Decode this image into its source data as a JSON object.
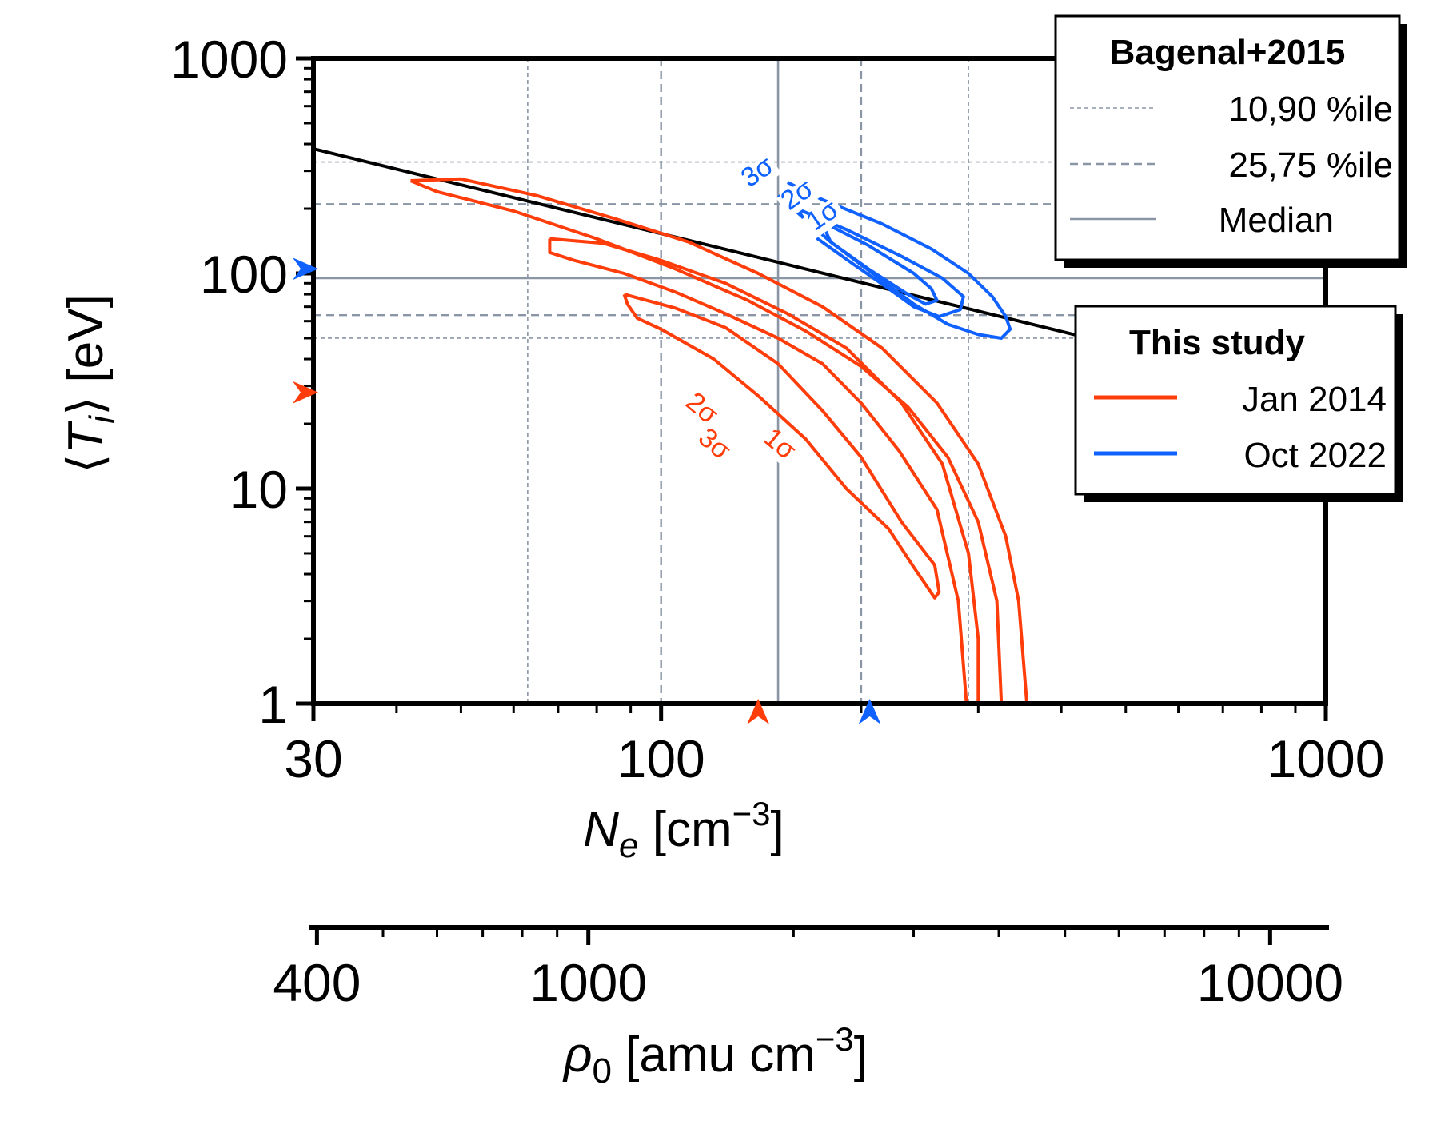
{
  "colors": {
    "jan": "#ff3d0a",
    "oct": "#0f62ff",
    "ref": "#8a96a6",
    "axis": "#000000"
  },
  "chart_data": {
    "type": "contour",
    "x_scale": "log",
    "y_scale": "log",
    "xlim": [
      30,
      1000
    ],
    "ylim": [
      1,
      1000
    ],
    "x_ticks": [
      30,
      100,
      1000
    ],
    "x_tick_labels": [
      "30",
      "100",
      "1000"
    ],
    "y_ticks": [
      1,
      10,
      100,
      1000
    ],
    "y_tick_labels": [
      "1",
      "10",
      "100",
      "1000"
    ],
    "xlabel": {
      "symbol": "N",
      "sub": "e",
      "unit_prefix": " [cm",
      "exp": "−3",
      "unit_suffix": "]"
    },
    "ylabel": {
      "open": "⟨",
      "symbol": "T",
      "sub": "i",
      "close": "⟩",
      "unit": " [eV]"
    },
    "secondary_x": {
      "xlim": [
        390,
        12200
      ],
      "ticks": [
        400,
        1000,
        10000
      ],
      "tick_labels": [
        "400",
        "1000",
        "10000"
      ],
      "label": {
        "symbol": "ρ",
        "sub": "0",
        "unit_prefix": " [amu cm",
        "exp": "−3",
        "unit_suffix": "]"
      }
    },
    "reference": {
      "median": {
        "x": 150,
        "y": 95
      },
      "p25_75": {
        "x": [
          100,
          200
        ],
        "y": [
          64,
          210
        ]
      },
      "p10_90": {
        "x": [
          63,
          290
        ],
        "y": [
          50,
          330
        ]
      },
      "trend_line": {
        "x": [
          30,
          440
        ],
        "y": [
          380,
          50
        ]
      }
    },
    "legend_reference": {
      "title": "Bagenal+2015",
      "entries": [
        "10,90 %ile",
        "25,75 %ile",
        "Median"
      ],
      "placement": "top-right"
    },
    "legend_study": {
      "title": "This study",
      "entries": [
        "Jan 2014",
        "Oct 2022"
      ],
      "placement": "right"
    },
    "series": [
      {
        "name": "Jan 2014",
        "markers": {
          "x": 140,
          "y": 28
        },
        "contours": [
          {
            "label": "1σ",
            "points": [
              [
                88,
                80
              ],
              [
                105,
                69
              ],
              [
                125,
                56
              ],
              [
                150,
                38
              ],
              [
                175,
                23
              ],
              [
                200,
                14
              ],
              [
                230,
                7
              ],
              [
                258,
                4.4
              ],
              [
                262,
                3.3
              ],
              [
                258,
                3.1
              ],
              [
                240,
                4.3
              ],
              [
                220,
                6.5
              ],
              [
                190,
                10
              ],
              [
                165,
                17
              ],
              [
                140,
                27
              ],
              [
                120,
                40
              ],
              [
                100,
                55
              ],
              [
                92,
                62
              ],
              [
                89,
                72
              ],
              [
                88,
                80
              ]
            ]
          },
          {
            "label": "2σ",
            "points": [
              [
                68,
                145
              ],
              [
                82,
                138
              ],
              [
                100,
                115
              ],
              [
                125,
                90
              ],
              [
                155,
                65
              ],
              [
                190,
                45
              ],
              [
                230,
                25
              ],
              [
                265,
                13
              ],
              [
                290,
                5
              ],
              [
                300,
                2
              ],
              [
                300,
                1
              ],
              [
                288,
                1
              ],
              [
                280,
                3
              ],
              [
                260,
                8
              ],
              [
                228,
                15
              ],
              [
                200,
                25
              ],
              [
                175,
                38
              ],
              [
                150,
                50
              ],
              [
                125,
                65
              ],
              [
                105,
                82
              ],
              [
                88,
                100
              ],
              [
                74,
                115
              ],
              [
                68,
                125
              ],
              [
                68,
                145
              ]
            ]
          },
          {
            "label": "3σ",
            "points": [
              [
                42,
                270
              ],
              [
                50,
                275
              ],
              [
                65,
                230
              ],
              [
                85,
                180
              ],
              [
                110,
                140
              ],
              [
                140,
                100
              ],
              [
                175,
                70
              ],
              [
                215,
                45
              ],
              [
                260,
                25
              ],
              [
                300,
                13
              ],
              [
                330,
                6
              ],
              [
                345,
                3
              ],
              [
                355,
                1
              ],
              [
                325,
                1
              ],
              [
                320,
                3
              ],
              [
                300,
                7
              ],
              [
                270,
                14
              ],
              [
                235,
                24
              ],
              [
                200,
                37
              ],
              [
                165,
                54
              ],
              [
                135,
                75
              ],
              [
                105,
                105
              ],
              [
                80,
                145
              ],
              [
                60,
                195
              ],
              [
                46,
                240
              ],
              [
                42,
                270
              ]
            ]
          }
        ],
        "contour_labels": [
          {
            "text": "2σ",
            "x": 113,
            "y": 22
          },
          {
            "text": "3σ",
            "x": 118,
            "y": 15
          },
          {
            "text": "1σ",
            "x": 148,
            "y": 15
          }
        ]
      },
      {
        "name": "Oct 2022",
        "markers": {
          "x": 206,
          "y": 105
        },
        "contours": [
          {
            "label": "1σ",
            "points": [
              [
                174,
                175
              ],
              [
                205,
                135
              ],
              [
                240,
                100
              ],
              [
                255,
                85
              ],
              [
                260,
                75
              ],
              [
                250,
                72
              ],
              [
                235,
                80
              ],
              [
                205,
                105
              ],
              [
                180,
                140
              ],
              [
                174,
                175
              ]
            ]
          },
          {
            "label": "2σ",
            "points": [
              [
                160,
                200
              ],
              [
                190,
                160
              ],
              [
                230,
                120
              ],
              [
                265,
                95
              ],
              [
                285,
                78
              ],
              [
                282,
                68
              ],
              [
                262,
                63
              ],
              [
                240,
                70
              ],
              [
                220,
                85
              ],
              [
                195,
                110
              ],
              [
                172,
                145
              ],
              [
                160,
                200
              ]
            ]
          },
          {
            "label": "3σ",
            "points": [
              [
                155,
                265
              ],
              [
                175,
                220
              ],
              [
                215,
                170
              ],
              [
                255,
                130
              ],
              [
                290,
                100
              ],
              [
                315,
                78
              ],
              [
                330,
                63
              ],
              [
                335,
                55
              ],
              [
                325,
                50
              ],
              [
                300,
                52
              ],
              [
                270,
                58
              ],
              [
                240,
                72
              ],
              [
                210,
                98
              ],
              [
                180,
                140
              ],
              [
                158,
                200
              ],
              [
                150,
                230
              ]
            ]
          }
        ],
        "contour_labels": [
          {
            "text": "3σ",
            "x": 142,
            "y": 275
          },
          {
            "text": "2σ",
            "x": 163,
            "y": 215
          },
          {
            "text": "1σ",
            "x": 178,
            "y": 172
          }
        ]
      }
    ]
  }
}
